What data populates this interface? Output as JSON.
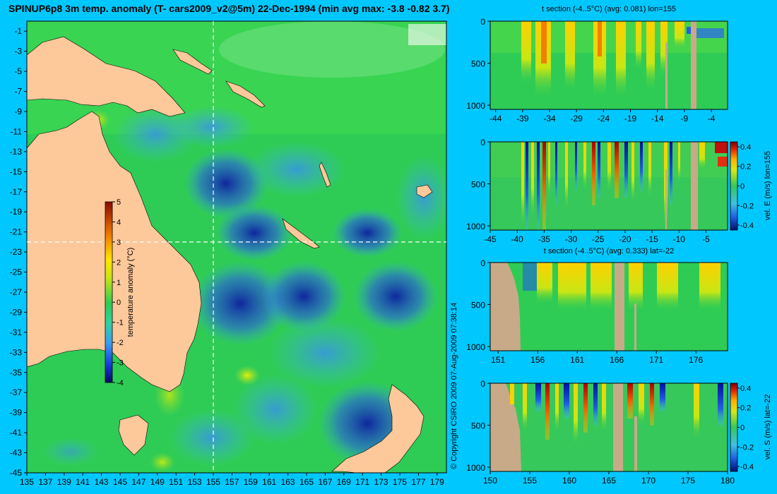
{
  "chart_data": [
    {
      "type": "heatmap",
      "title": "SPINUP6p8 3m temp. anomaly (T- cars2009_v2@5m) 22-Dec-1994 (min avg max: -3.8 -0.82 3.7)",
      "x_ticks": [
        "135",
        "137",
        "139",
        "141",
        "143",
        "145",
        "147",
        "149",
        "151",
        "153",
        "155",
        "157",
        "159",
        "161",
        "163",
        "165",
        "167",
        "169",
        "171",
        "173",
        "175",
        "177",
        "179"
      ],
      "y_ticks": [
        "-1",
        "-3",
        "-5",
        "-7",
        "-9",
        "-11",
        "-13",
        "-15",
        "-17",
        "-19",
        "-21",
        "-23",
        "-25",
        "-27",
        "-29",
        "-31",
        "-33",
        "-35",
        "-37",
        "-39",
        "-41",
        "-43",
        "-45"
      ],
      "xlim": [
        135,
        180
      ],
      "ylim": [
        -45,
        0
      ],
      "section_lines": {
        "lon": 155,
        "lat": -22
      },
      "colorbar": {
        "label": "temperature anomaly (°C)",
        "ticks": [
          "5",
          "4",
          "3",
          "2",
          "1",
          "0",
          "-1",
          "-2",
          "-3",
          "-4"
        ],
        "range": [
          -4,
          5
        ]
      },
      "colors": {
        "land": "#fdc89a",
        "ocean_base": "#2ecc55"
      },
      "copyright": "© Copyright CSIRO 2009   07-Aug-2009 07:38:14"
    },
    {
      "type": "heatmap",
      "title": "t section (-4..5°C) (avg: 0.081) lon=155",
      "x_ticks": [
        "-44",
        "-39",
        "-34",
        "-29",
        "-24",
        "-19",
        "-14",
        "-9",
        "-4"
      ],
      "y_ticks": [
        "0",
        "500",
        "1000"
      ],
      "xlim": [
        -45,
        -1
      ],
      "ylim": [
        1050,
        0
      ]
    },
    {
      "type": "heatmap",
      "title": "",
      "x_ticks": [
        "-45",
        "-40",
        "-35",
        "-30",
        "-25",
        "-20",
        "-15",
        "-10",
        "-5"
      ],
      "y_ticks": [
        "0",
        "500",
        "1000"
      ],
      "xlim": [
        -45,
        -1
      ],
      "ylim": [
        1050,
        0
      ],
      "colorbar": {
        "label": "vel. E (m/s) lon=155",
        "ticks": [
          "0.4",
          "0.2",
          "0",
          "-0.2",
          "-0.4"
        ],
        "range": [
          -0.45,
          0.45
        ]
      }
    },
    {
      "type": "heatmap",
      "title": "t section (-4..5°C) (avg: 0.333) lat=-22",
      "x_ticks": [
        "151",
        "156",
        "161",
        "166",
        "171",
        "176"
      ],
      "y_ticks": [
        "0",
        "500",
        "1000"
      ],
      "xlim": [
        150,
        180
      ],
      "ylim": [
        1050,
        0
      ]
    },
    {
      "type": "heatmap",
      "title": "",
      "x_ticks": [
        "150",
        "155",
        "160",
        "165",
        "170",
        "175",
        "180"
      ],
      "y_ticks": [
        "0",
        "500",
        "1000"
      ],
      "xlim": [
        150,
        180
      ],
      "ylim": [
        1050,
        0
      ],
      "colorbar": {
        "label": "vel. S (m/s) lat=-22",
        "ticks": [
          "0.4",
          "0.2",
          "0",
          "-0.2",
          "-0.4"
        ],
        "range": [
          -0.45,
          0.45
        ]
      }
    }
  ]
}
